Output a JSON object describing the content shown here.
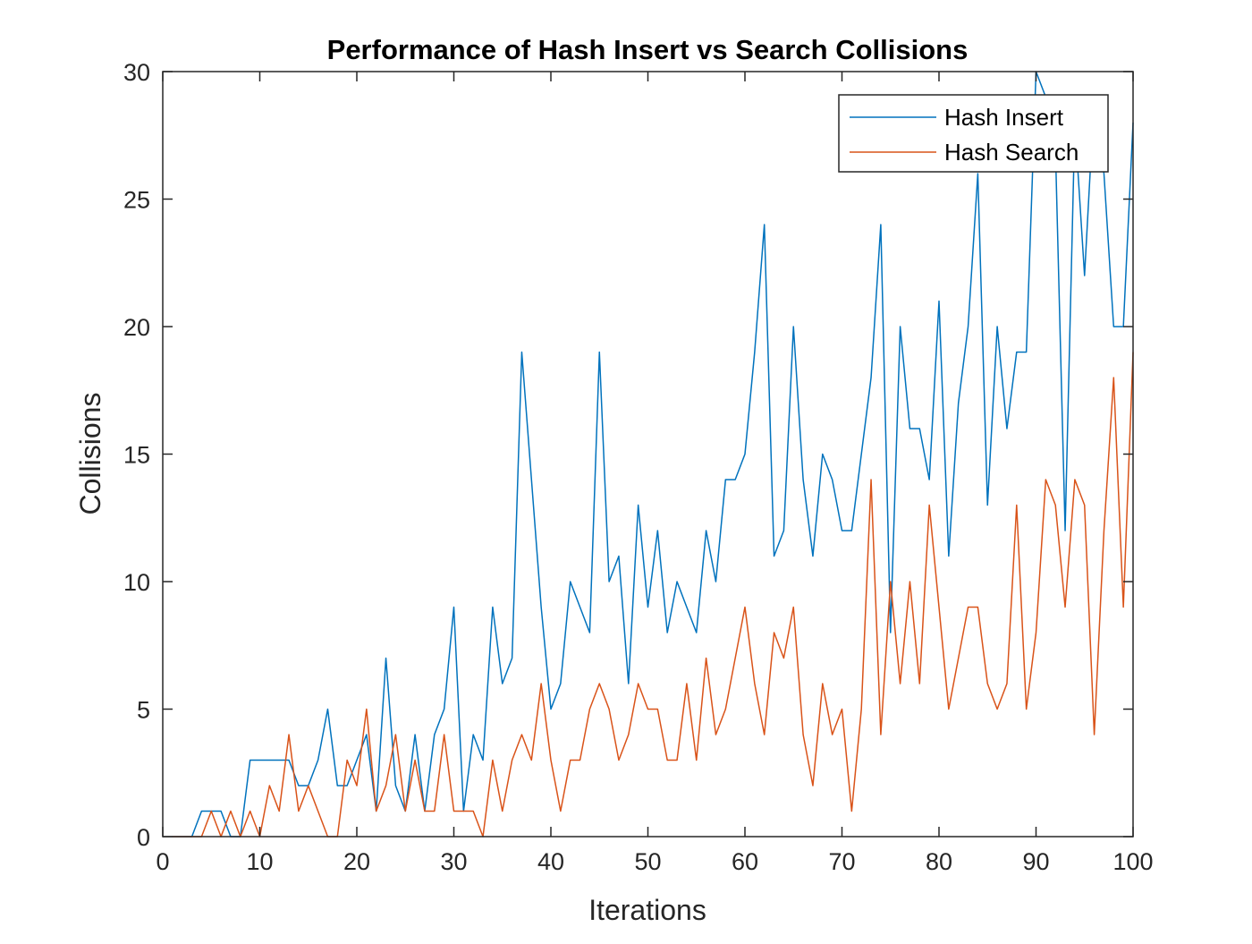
{
  "colors": {
    "insert": "#0072BD",
    "search": "#D95319",
    "axis": "#262626",
    "background": "#ffffff"
  },
  "chart_data": {
    "type": "line",
    "title": "Performance of Hash Insert vs Search Collisions",
    "xlabel": "Iterations",
    "ylabel": "Collisions",
    "xlim": [
      0,
      100
    ],
    "ylim": [
      0,
      30
    ],
    "xticks": [
      "0",
      "10",
      "20",
      "30",
      "40",
      "50",
      "60",
      "70",
      "80",
      "90",
      "100"
    ],
    "yticks": [
      "0",
      "5",
      "10",
      "15",
      "20",
      "25",
      "30"
    ],
    "grid": false,
    "legend_position": "top-right",
    "x": [
      1,
      2,
      3,
      4,
      5,
      6,
      7,
      8,
      9,
      10,
      11,
      12,
      13,
      14,
      15,
      16,
      17,
      18,
      19,
      20,
      21,
      22,
      23,
      24,
      25,
      26,
      27,
      28,
      29,
      30,
      31,
      32,
      33,
      34,
      35,
      36,
      37,
      38,
      39,
      40,
      41,
      42,
      43,
      44,
      45,
      46,
      47,
      48,
      49,
      50,
      51,
      52,
      53,
      54,
      55,
      56,
      57,
      58,
      59,
      60,
      61,
      62,
      63,
      64,
      65,
      66,
      67,
      68,
      69,
      70,
      71,
      72,
      73,
      74,
      75,
      76,
      77,
      78,
      79,
      80,
      81,
      82,
      83,
      84,
      85,
      86,
      87,
      88,
      89,
      90,
      91,
      92,
      93,
      94,
      95,
      96,
      97,
      98,
      99,
      100
    ],
    "series": [
      {
        "name": "Hash Insert",
        "color": "#0072BD",
        "values": [
          0,
          0,
          0,
          1,
          1,
          1,
          0,
          0,
          3,
          3,
          3,
          3,
          3,
          2,
          2,
          3,
          5,
          2,
          2,
          3,
          4,
          1,
          7,
          2,
          1,
          4,
          1,
          4,
          5,
          9,
          1,
          4,
          3,
          9,
          6,
          7,
          19,
          14,
          9,
          5,
          6,
          10,
          9,
          8,
          19,
          10,
          11,
          6,
          13,
          9,
          12,
          8,
          10,
          9,
          8,
          12,
          10,
          14,
          14,
          15,
          19,
          24,
          11,
          12,
          20,
          14,
          11,
          15,
          14,
          12,
          12,
          15,
          18,
          24,
          8,
          20,
          16,
          16,
          14,
          21,
          11,
          17,
          20,
          26,
          13,
          20,
          16,
          19,
          19,
          30,
          29,
          27,
          12,
          28,
          22,
          29,
          26,
          20,
          20,
          28
        ]
      },
      {
        "name": "Hash Search",
        "color": "#D95319",
        "values": [
          0,
          0,
          0,
          0,
          1,
          0,
          1,
          0,
          1,
          0,
          2,
          1,
          4,
          1,
          2,
          1,
          0,
          0,
          3,
          2,
          5,
          1,
          2,
          4,
          1,
          3,
          1,
          1,
          4,
          1,
          1,
          1,
          0,
          3,
          1,
          3,
          4,
          3,
          6,
          3,
          1,
          3,
          3,
          5,
          6,
          5,
          3,
          4,
          6,
          5,
          5,
          3,
          3,
          6,
          3,
          7,
          4,
          5,
          7,
          9,
          6,
          4,
          8,
          7,
          9,
          4,
          2,
          6,
          4,
          5,
          1,
          5,
          14,
          4,
          10,
          6,
          10,
          6,
          13,
          9,
          5,
          7,
          9,
          9,
          6,
          5,
          6,
          13,
          5,
          8,
          14,
          13,
          9,
          14,
          13,
          4,
          12,
          18,
          9,
          19
        ]
      }
    ]
  }
}
